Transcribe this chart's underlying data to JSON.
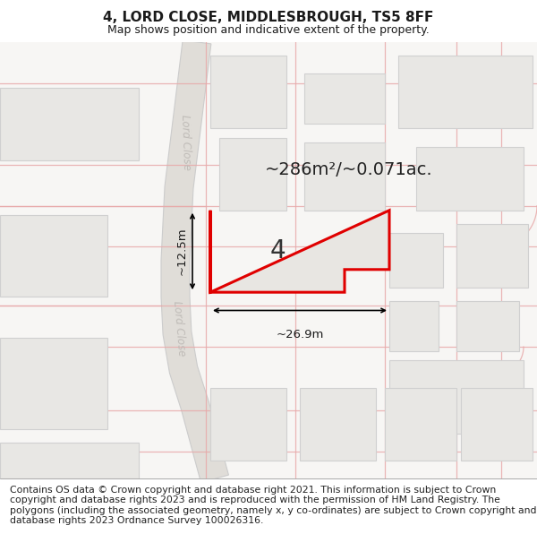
{
  "title": "4, LORD CLOSE, MIDDLESBROUGH, TS5 8FF",
  "subtitle": "Map shows position and indicative extent of the property.",
  "footer": "Contains OS data © Crown copyright and database right 2021. This information is subject to Crown copyright and database rights 2023 and is reproduced with the permission of HM Land Registry. The polygons (including the associated geometry, namely x, y co-ordinates) are subject to Crown copyright and database rights 2023 Ordnance Survey 100026316.",
  "map_bg": "#f7f6f4",
  "road_fill": "#e0ddd8",
  "road_edge": "#cccccc",
  "block_fill": "#e8e7e4",
  "block_edge": "#d0d0d0",
  "grid_color": "#e8aaaa",
  "highlight_fill": "#e8e6e2",
  "highlight_edge": "#e00000",
  "street_label_color": "#c0bcb8",
  "area_label": "~286m²/~0.071ac.",
  "plot_label": "4",
  "dim_width": "~26.9m",
  "dim_height": "~12.5m",
  "street_label": "Lord Close",
  "title_fontsize": 11,
  "subtitle_fontsize": 9,
  "footer_fontsize": 7.8
}
